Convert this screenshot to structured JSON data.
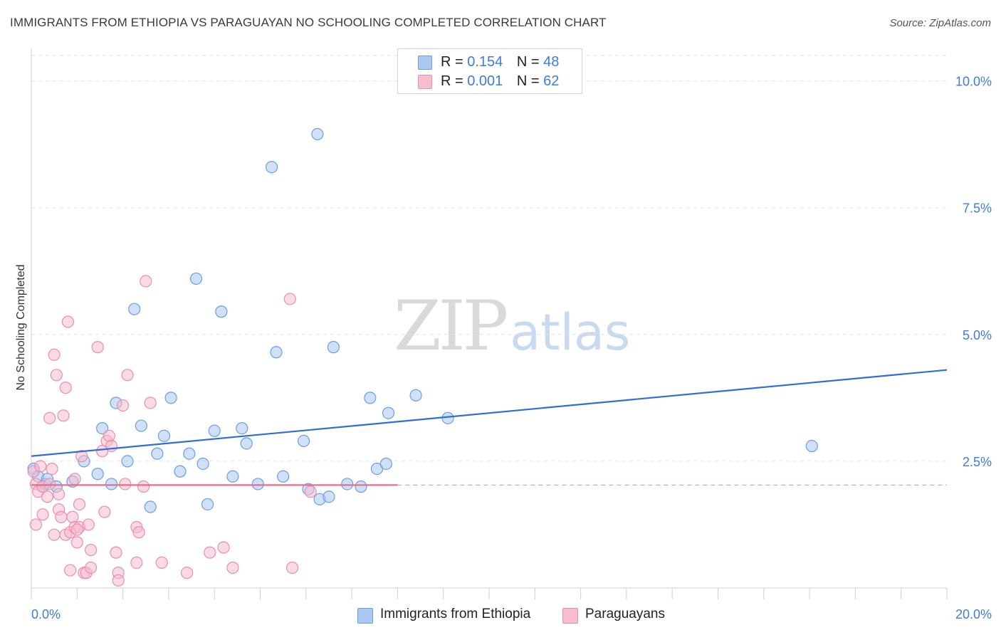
{
  "header": {
    "title": "IMMIGRANTS FROM ETHIOPIA VS PARAGUAYAN NO SCHOOLING COMPLETED CORRELATION CHART",
    "source": "Source: ZipAtlas.com"
  },
  "watermark": {
    "zip": "ZIP",
    "atlas": "atlas"
  },
  "legend": {
    "rows": [
      {
        "r_label": "R =",
        "r_value": "0.154",
        "n_label": "N =",
        "n_value": "48",
        "color": "#aac8f0"
      },
      {
        "r_label": "R =",
        "r_value": "0.001",
        "n_label": "N =",
        "n_value": "62",
        "color": "#f6bccf"
      }
    ]
  },
  "bottom_legend": {
    "items": [
      {
        "label": "Immigrants from Ethiopia",
        "color": "#aac8f0"
      },
      {
        "label": "Paraguayans",
        "color": "#f6bccf"
      }
    ]
  },
  "chart_data": {
    "type": "scatter",
    "ylabel": "No Schooling Completed",
    "xlim": [
      0,
      20
    ],
    "ylim": [
      0,
      10.5
    ],
    "x_tick_labels": [
      {
        "value": 0,
        "label": "0.0%"
      },
      {
        "value": 20,
        "label": "20.0%"
      }
    ],
    "y_tick_labels": [
      {
        "value": 2.5,
        "label": "2.5%"
      },
      {
        "value": 5,
        "label": "5.0%"
      },
      {
        "value": 7.5,
        "label": "7.5%"
      },
      {
        "value": 10,
        "label": "10.0%"
      }
    ],
    "grid": true,
    "series": [
      {
        "name": "Immigrants from Ethiopia",
        "color": "#aac8f0",
        "stroke": "#6a9ee0",
        "trend": {
          "x": [
            0,
            20
          ],
          "y": [
            2.6,
            4.3
          ],
          "color": "#2f6fd1",
          "dashed_from": null
        },
        "points": [
          [
            0.05,
            2.35
          ],
          [
            0.15,
            2.2
          ],
          [
            0.3,
            2.05
          ],
          [
            0.35,
            2.15
          ],
          [
            0.55,
            2.0
          ],
          [
            0.9,
            2.1
          ],
          [
            1.15,
            2.5
          ],
          [
            1.45,
            2.25
          ],
          [
            1.55,
            3.15
          ],
          [
            1.75,
            2.05
          ],
          [
            1.85,
            3.65
          ],
          [
            2.1,
            2.5
          ],
          [
            2.25,
            5.5
          ],
          [
            2.4,
            3.2
          ],
          [
            2.6,
            1.6
          ],
          [
            2.75,
            2.65
          ],
          [
            2.9,
            3.0
          ],
          [
            3.05,
            3.75
          ],
          [
            3.25,
            2.3
          ],
          [
            3.45,
            2.65
          ],
          [
            3.6,
            6.1
          ],
          [
            3.75,
            2.45
          ],
          [
            3.85,
            1.65
          ],
          [
            4.0,
            3.1
          ],
          [
            4.15,
            5.45
          ],
          [
            4.4,
            2.2
          ],
          [
            4.6,
            3.15
          ],
          [
            4.7,
            2.85
          ],
          [
            4.95,
            2.05
          ],
          [
            5.25,
            8.3
          ],
          [
            5.35,
            4.65
          ],
          [
            5.5,
            2.2
          ],
          [
            5.95,
            2.9
          ],
          [
            6.05,
            1.95
          ],
          [
            6.3,
            1.75
          ],
          [
            6.5,
            1.8
          ],
          [
            6.25,
            8.95
          ],
          [
            6.6,
            4.75
          ],
          [
            6.9,
            2.05
          ],
          [
            7.2,
            2.0
          ],
          [
            7.4,
            3.75
          ],
          [
            7.55,
            2.35
          ],
          [
            7.8,
            3.45
          ],
          [
            7.75,
            2.45
          ],
          [
            8.4,
            3.8
          ],
          [
            9.1,
            3.35
          ],
          [
            17.05,
            2.8
          ],
          [
            0.25,
            2.0
          ]
        ]
      },
      {
        "name": "Paraguayans",
        "color": "#f6bccf",
        "stroke": "#e88fab",
        "trend": {
          "x": [
            0,
            20
          ],
          "y": [
            2.03,
            2.03
          ],
          "color": "#e0708f",
          "dashed_from": 8.0
        },
        "points": [
          [
            0.05,
            2.3
          ],
          [
            0.1,
            2.05
          ],
          [
            0.1,
            1.25
          ],
          [
            0.15,
            1.9
          ],
          [
            0.2,
            2.4
          ],
          [
            0.25,
            1.45
          ],
          [
            0.25,
            2.0
          ],
          [
            0.35,
            1.8
          ],
          [
            0.4,
            2.05
          ],
          [
            0.4,
            3.35
          ],
          [
            0.45,
            2.35
          ],
          [
            0.5,
            1.05
          ],
          [
            0.5,
            4.6
          ],
          [
            0.55,
            4.2
          ],
          [
            0.6,
            1.55
          ],
          [
            0.65,
            1.4
          ],
          [
            0.7,
            3.4
          ],
          [
            0.75,
            3.95
          ],
          [
            0.75,
            1.05
          ],
          [
            0.8,
            5.25
          ],
          [
            0.85,
            0.35
          ],
          [
            0.85,
            1.1
          ],
          [
            0.9,
            1.4
          ],
          [
            0.95,
            2.15
          ],
          [
            0.95,
            1.2
          ],
          [
            1.0,
            0.9
          ],
          [
            1.05,
            1.65
          ],
          [
            1.05,
            1.2
          ],
          [
            1.1,
            2.6
          ],
          [
            1.15,
            0.3
          ],
          [
            1.2,
            0.3
          ],
          [
            1.25,
            1.25
          ],
          [
            1.3,
            0.4
          ],
          [
            1.3,
            0.75
          ],
          [
            1.45,
            4.75
          ],
          [
            1.55,
            2.7
          ],
          [
            1.6,
            1.5
          ],
          [
            1.65,
            2.9
          ],
          [
            1.7,
            3.0
          ],
          [
            1.75,
            2.8
          ],
          [
            1.85,
            0.7
          ],
          [
            1.9,
            0.3
          ],
          [
            1.9,
            0.15
          ],
          [
            2.0,
            3.6
          ],
          [
            2.05,
            2.05
          ],
          [
            2.1,
            4.2
          ],
          [
            2.3,
            1.2
          ],
          [
            2.3,
            0.5
          ],
          [
            2.35,
            1.1
          ],
          [
            2.45,
            2.0
          ],
          [
            2.5,
            6.05
          ],
          [
            2.6,
            3.65
          ],
          [
            2.85,
            0.5
          ],
          [
            3.4,
            0.3
          ],
          [
            3.9,
            0.7
          ],
          [
            4.2,
            0.8
          ],
          [
            4.4,
            0.4
          ],
          [
            5.65,
            5.7
          ],
          [
            5.7,
            0.4
          ],
          [
            6.1,
            1.9
          ],
          [
            1.0,
            1.15
          ],
          [
            0.6,
            1.85
          ]
        ]
      }
    ]
  }
}
